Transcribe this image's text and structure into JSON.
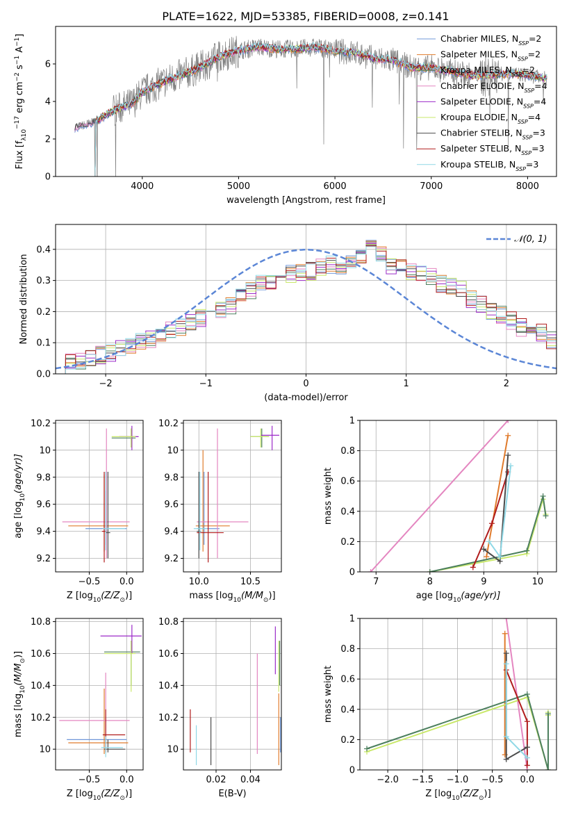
{
  "figure": {
    "title": "PLATE=1622, MJD=53385, FIBERID=0008, z=0.141"
  },
  "series": [
    {
      "name": "Chabrier MILES, N",
      "sub": "SSP",
      "tail": "=2",
      "color": "#6f97d9"
    },
    {
      "name": "Salpeter MILES, N",
      "sub": "SSP",
      "tail": "=2",
      "color": "#e07b2c"
    },
    {
      "name": "Kroupa MILES, N",
      "sub": "SSP",
      "tail": "=2",
      "color": "#4c7f5e"
    },
    {
      "name": "Chabrier ELODIE, N",
      "sub": "SSP",
      "tail": "=4",
      "color": "#e486c0"
    },
    {
      "name": "Salpeter ELODIE, N",
      "sub": "SSP",
      "tail": "=4",
      "color": "#9b2ac8"
    },
    {
      "name": "Kroupa ELODIE, N",
      "sub": "SSP",
      "tail": "=4",
      "color": "#c9e86a"
    },
    {
      "name": "Chabrier STELIB, N",
      "sub": "SSP",
      "tail": "=3",
      "color": "#4a4a4a"
    },
    {
      "name": "Salpeter STELIB, N",
      "sub": "SSP",
      "tail": "=3",
      "color": "#b01c1c"
    },
    {
      "name": "Kroupa STELIB, N",
      "sub": "SSP",
      "tail": "=3",
      "color": "#8fd8e6"
    }
  ],
  "data_color": "#7f7f7f",
  "chart_data": [
    {
      "id": "spectrum",
      "type": "line",
      "xlabel": "wavelength [Angstrom, rest frame]",
      "ylabel": "Flux [f",
      "ylabel_parts": [
        "λ",
        "10",
        "−17",
        " erg cm",
        "−2",
        " s",
        "−1",
        " A",
        "−1",
        "]"
      ],
      "xlim": [
        3100,
        8300
      ],
      "ylim": [
        0,
        8
      ],
      "xticks": [
        4000,
        5000,
        6000,
        7000,
        8000
      ],
      "yticks": [
        0,
        2,
        4,
        6
      ],
      "grid": false,
      "legend": "right",
      "continuum": [
        [
          3300,
          2.6
        ],
        [
          3500,
          2.9
        ],
        [
          3700,
          3.5
        ],
        [
          3900,
          3.9
        ],
        [
          4000,
          4.5
        ],
        [
          4200,
          5.0
        ],
        [
          4400,
          5.4
        ],
        [
          4600,
          5.8
        ],
        [
          4800,
          6.4
        ],
        [
          5000,
          6.7
        ],
        [
          5200,
          6.9
        ],
        [
          5400,
          6.8
        ],
        [
          5600,
          6.8
        ],
        [
          5800,
          6.9
        ],
        [
          6000,
          6.7
        ],
        [
          6200,
          6.6
        ],
        [
          6400,
          6.3
        ],
        [
          6600,
          6.2
        ],
        [
          6800,
          5.8
        ],
        [
          7000,
          5.8
        ],
        [
          7200,
          5.6
        ],
        [
          7400,
          5.4
        ],
        [
          7600,
          5.4
        ],
        [
          7800,
          5.5
        ],
        [
          8000,
          5.4
        ],
        [
          8200,
          5.2
        ]
      ]
    },
    {
      "id": "residuals",
      "type": "histogram",
      "xlabel": "(data-model)/error",
      "ylabel": "Normed distribution",
      "xlim": [
        -2.5,
        2.5
      ],
      "ylim": [
        0,
        0.48
      ],
      "xticks": [
        -2,
        -1,
        0,
        1,
        2
      ],
      "yticks": [
        0.0,
        0.1,
        0.2,
        0.3,
        0.4
      ],
      "grid": true,
      "legend": "top-right",
      "gaussian_label": "𝒩(0, 1)",
      "gaussian_color": "#5b86d6",
      "bin_width": 0.1,
      "base": [
        0.03,
        0.035,
        0.045,
        0.05,
        0.06,
        0.07,
        0.08,
        0.09,
        0.1,
        0.11,
        0.12,
        0.14,
        0.15,
        0.17,
        0.18,
        0.2,
        0.21,
        0.22,
        0.25,
        0.27,
        0.29,
        0.3,
        0.31,
        0.32,
        0.33,
        0.33,
        0.34,
        0.35,
        0.35,
        0.36,
        0.37,
        0.4,
        0.38,
        0.35,
        0.34,
        0.33,
        0.32,
        0.31,
        0.29,
        0.28,
        0.27,
        0.24,
        0.22,
        0.2,
        0.19,
        0.17,
        0.15,
        0.14,
        0.13,
        0.11
      ]
    },
    {
      "id": "age-vs-Z",
      "type": "errorbar",
      "xlabel": "Z [log",
      "xlabel_parts": [
        "10",
        "(Z/Z",
        "⊙",
        ")]"
      ],
      "ylabel": "age  [log",
      "ylabel_parts": [
        "10",
        "(age/yr)]"
      ],
      "xlim": [
        -0.95,
        0.22
      ],
      "ylim": [
        9.1,
        10.22
      ],
      "xticks": [
        -0.5,
        0.0
      ],
      "xtick_labels": [
        "−0.5",
        "0.0"
      ],
      "yticks": [
        9.2,
        9.4,
        9.6,
        9.8,
        10.0,
        10.2
      ],
      "grid": true,
      "points": [
        {
          "s": 0,
          "x": -0.28,
          "xe": [
            -0.55,
            0.0
          ],
          "y": 9.42,
          "ye": [
            9.3,
            9.7
          ]
        },
        {
          "s": 1,
          "x": -0.3,
          "xe": [
            -0.78,
            0.02
          ],
          "y": 9.44,
          "ye": [
            9.25,
            9.82
          ]
        },
        {
          "s": 2,
          "x": 0.06,
          "xe": [
            -0.2,
            0.12
          ],
          "y": 10.09,
          "ye": [
            10.02,
            10.16
          ]
        },
        {
          "s": 3,
          "x": -0.27,
          "xe": [
            -0.86,
            0.04
          ],
          "y": 9.47,
          "ye": [
            9.2,
            10.16
          ]
        },
        {
          "s": 4,
          "x": 0.07,
          "xe": [
            -0.1,
            0.16
          ],
          "y": 10.1,
          "ye": [
            10.0,
            10.18
          ]
        },
        {
          "s": 5,
          "x": 0.06,
          "xe": [
            -0.2,
            0.12
          ],
          "y": 10.1,
          "ye": [
            10.02,
            10.16
          ]
        },
        {
          "s": 6,
          "x": -0.25,
          "xe": [
            -0.28,
            -0.22
          ],
          "y": 9.39,
          "ye": [
            9.2,
            9.84
          ]
        },
        {
          "s": 7,
          "x": -0.3,
          "xe": [
            -0.33,
            -0.27
          ],
          "y": 9.4,
          "ye": [
            9.17,
            9.84
          ]
        },
        {
          "s": 8,
          "x": -0.28,
          "xe": [
            -0.32,
            -0.02
          ],
          "y": 9.42,
          "ye": [
            9.26,
            9.84
          ]
        }
      ]
    },
    {
      "id": "age-vs-mass",
      "type": "errorbar",
      "xlabel": "mass [log",
      "xlabel_parts": [
        "10",
        "(M/M",
        "⊙",
        ")]"
      ],
      "ylabel": "",
      "xlim": [
        9.85,
        10.8
      ],
      "ylim": [
        9.1,
        10.22
      ],
      "xticks": [
        10.0,
        10.5
      ],
      "xtick_labels": [
        "10.0",
        "10.5"
      ],
      "yticks": [
        9.2,
        9.4,
        9.6,
        9.8,
        10.0,
        10.2
      ],
      "grid": true,
      "points": [
        {
          "s": 0,
          "x": 10.05,
          "xe": [
            9.98,
            10.2
          ],
          "y": 9.42,
          "ye": [
            9.3,
            9.84
          ]
        },
        {
          "s": 1,
          "x": 10.04,
          "xe": [
            9.97,
            10.3
          ],
          "y": 9.44,
          "ye": [
            9.25,
            10.0
          ]
        },
        {
          "s": 2,
          "x": 10.61,
          "xe": [
            10.5,
            10.68
          ],
          "y": 10.1,
          "ye": [
            10.02,
            10.16
          ]
        },
        {
          "s": 3,
          "x": 10.18,
          "xe": [
            9.98,
            10.48
          ],
          "y": 9.47,
          "ye": [
            9.2,
            10.16
          ]
        },
        {
          "s": 4,
          "x": 10.71,
          "xe": [
            10.6,
            10.78
          ],
          "y": 10.11,
          "ye": [
            10.0,
            10.18
          ]
        },
        {
          "s": 5,
          "x": 10.6,
          "xe": [
            10.5,
            10.68
          ],
          "y": 10.1,
          "ye": [
            10.02,
            10.16
          ]
        },
        {
          "s": 6,
          "x": 10.0,
          "xe": [
            9.98,
            10.02
          ],
          "y": 9.4,
          "ye": [
            9.2,
            9.84
          ]
        },
        {
          "s": 7,
          "x": 10.09,
          "xe": [
            9.98,
            10.24
          ],
          "y": 9.39,
          "ye": [
            9.17,
            9.84
          ]
        },
        {
          "s": 8,
          "x": 10.01,
          "xe": [
            9.95,
            10.08
          ],
          "y": 9.42,
          "ye": [
            9.26,
            9.84
          ]
        }
      ]
    },
    {
      "id": "weight-vs-age",
      "type": "line",
      "xlabel": "age  [log",
      "xlabel_parts": [
        "10",
        "(age/yr)]"
      ],
      "ylabel": "mass weight",
      "xlim": [
        6.7,
        10.35
      ],
      "ylim": [
        0.0,
        1.0
      ],
      "xticks": [
        7,
        8,
        9,
        10
      ],
      "xtick_labels": [
        "7",
        "8",
        "9",
        "10"
      ],
      "yticks": [
        0.0,
        0.2,
        0.4,
        0.6,
        0.8,
        1.0
      ],
      "grid": true,
      "lines": [
        {
          "s": 3,
          "x": [
            6.9,
            9.45
          ],
          "y": [
            0.0,
            1.0
          ]
        },
        {
          "s": 1,
          "x": [
            9.05,
            9.45
          ],
          "y": [
            0.1,
            0.9
          ]
        },
        {
          "s": 5,
          "x": [
            8.0,
            9.8,
            10.1,
            10.15
          ],
          "y": [
            0.0,
            0.12,
            0.48,
            0.38
          ]
        },
        {
          "s": 2,
          "x": [
            8.0,
            9.8,
            10.1,
            10.15
          ],
          "y": [
            0.0,
            0.14,
            0.5,
            0.37
          ]
        },
        {
          "s": 7,
          "x": [
            8.8,
            9.15,
            9.45
          ],
          "y": [
            0.03,
            0.32,
            0.66
          ]
        },
        {
          "s": 6,
          "x": [
            9.0,
            9.3,
            9.45
          ],
          "y": [
            0.15,
            0.07,
            0.77
          ]
        },
        {
          "s": 8,
          "x": [
            9.1,
            9.3,
            9.5
          ],
          "y": [
            0.2,
            0.1,
            0.7
          ]
        }
      ]
    },
    {
      "id": "mass-vs-Z",
      "type": "errorbar",
      "xlabel": "Z [log",
      "xlabel_parts": [
        "10",
        "(Z/Z",
        "⊙",
        ")]"
      ],
      "ylabel": "mass [log",
      "ylabel_parts": [
        "10",
        "(M/M",
        "⊙",
        ")]"
      ],
      "xlim": [
        -0.95,
        0.22
      ],
      "ylim": [
        9.87,
        10.82
      ],
      "xticks": [
        -0.5,
        0.0
      ],
      "xtick_labels": [
        "−0.5",
        "0.0"
      ],
      "yticks": [
        10.0,
        10.2,
        10.4,
        10.6,
        10.8
      ],
      "grid": true,
      "points": [
        {
          "s": 0,
          "x": -0.28,
          "xe": [
            -0.8,
            0.0
          ],
          "y": 10.06,
          "ye": [
            9.98,
            10.2
          ]
        },
        {
          "s": 1,
          "x": -0.3,
          "xe": [
            -0.78,
            0.02
          ],
          "y": 10.04,
          "ye": [
            9.97,
            10.38
          ]
        },
        {
          "s": 2,
          "x": 0.06,
          "xe": [
            -0.3,
            0.18
          ],
          "y": 10.61,
          "ye": [
            10.4,
            10.68
          ]
        },
        {
          "s": 3,
          "x": -0.28,
          "xe": [
            -0.9,
            0.04
          ],
          "y": 10.18,
          "ye": [
            9.98,
            10.48
          ]
        },
        {
          "s": 4,
          "x": 0.07,
          "xe": [
            -0.35,
            0.2
          ],
          "y": 10.71,
          "ye": [
            10.6,
            10.78
          ]
        },
        {
          "s": 5,
          "x": 0.06,
          "xe": [
            -0.3,
            0.12
          ],
          "y": 10.6,
          "ye": [
            10.36,
            10.68
          ]
        },
        {
          "s": 6,
          "x": -0.25,
          "xe": [
            -0.3,
            -0.02
          ],
          "y": 10.0,
          "ye": [
            9.98,
            10.06
          ]
        },
        {
          "s": 7,
          "x": -0.28,
          "xe": [
            -0.32,
            -0.02
          ],
          "y": 10.09,
          "ye": [
            9.98,
            10.25
          ]
        },
        {
          "s": 8,
          "x": -0.28,
          "xe": [
            -0.34,
            -0.05
          ],
          "y": 10.01,
          "ye": [
            9.95,
            10.08
          ]
        }
      ]
    },
    {
      "id": "mass-vs-EBV",
      "type": "errorbar",
      "xlabel": "E(B-V)",
      "ylabel": "",
      "xlim": [
        0.001,
        0.058
      ],
      "ylim": [
        9.87,
        10.82
      ],
      "xticks": [
        0.02,
        0.04
      ],
      "xtick_labels": [
        "0.02",
        "0.04"
      ],
      "yticks": [
        10.0,
        10.2,
        10.4,
        10.6,
        10.8
      ],
      "grid": true,
      "points": [
        {
          "s": 0,
          "x": 0.0575,
          "xe": null,
          "y": 10.06,
          "ye": [
            9.98,
            10.2
          ]
        },
        {
          "s": 1,
          "x": 0.0565,
          "xe": null,
          "y": 10.04,
          "ye": [
            9.9,
            10.35
          ]
        },
        {
          "s": 2,
          "x": 0.057,
          "xe": null,
          "y": 10.61,
          "ye": [
            10.4,
            10.68
          ]
        },
        {
          "s": 3,
          "x": 0.044,
          "xe": null,
          "y": 10.18,
          "ye": [
            9.97,
            10.6
          ]
        },
        {
          "s": 4,
          "x": 0.0545,
          "xe": null,
          "y": 10.65,
          "ye": [
            10.47,
            10.77
          ]
        },
        {
          "s": 5,
          "x": 0.0565,
          "xe": null,
          "y": 10.6,
          "ye": [
            10.36,
            10.68
          ]
        },
        {
          "s": 6,
          "x": 0.017,
          "xe": null,
          "y": 10.1,
          "ye": [
            9.9,
            10.2
          ]
        },
        {
          "s": 7,
          "x": 0.005,
          "xe": null,
          "y": 10.09,
          "ye": [
            9.98,
            10.25
          ]
        },
        {
          "s": 8,
          "x": 0.0085,
          "xe": null,
          "y": 10.0,
          "ye": [
            9.9,
            10.15
          ]
        }
      ]
    },
    {
      "id": "weight-vs-Z",
      "type": "line",
      "xlabel": "Z [log",
      "xlabel_parts": [
        "10",
        "(Z/Z",
        "⊙",
        ")]"
      ],
      "ylabel": "mass weight",
      "xlim": [
        -2.4,
        0.42
      ],
      "ylim": [
        0.0,
        1.0
      ],
      "xticks": [
        -2.0,
        -1.5,
        -1.0,
        -0.5,
        0.0
      ],
      "xtick_labels": [
        "−2.0",
        "−1.5",
        "−1.0",
        "−0.5",
        "0.0"
      ],
      "yticks": [
        0.0,
        0.2,
        0.4,
        0.6,
        0.8,
        1.0
      ],
      "grid": true,
      "lines": [
        {
          "s": 3,
          "x": [
            -0.3,
            0.0
          ],
          "y": [
            1.0,
            0.0
          ]
        },
        {
          "s": 1,
          "x": [
            -0.32,
            -0.32
          ],
          "y": [
            0.9,
            0.1
          ]
        },
        {
          "s": 5,
          "x": [
            -2.3,
            0.0,
            0.3,
            0.3,
            0.3
          ],
          "y": [
            0.12,
            0.48,
            0.0,
            0.38,
            0.36
          ]
        },
        {
          "s": 2,
          "x": [
            -2.3,
            0.0,
            0.3,
            0.3
          ],
          "y": [
            0.14,
            0.5,
            0.0,
            0.37
          ]
        },
        {
          "s": 7,
          "x": [
            -0.3,
            0.0,
            0.0
          ],
          "y": [
            0.66,
            0.32,
            0.03
          ]
        },
        {
          "s": 6,
          "x": [
            -0.3,
            -0.3,
            0.0
          ],
          "y": [
            0.77,
            0.07,
            0.15
          ]
        },
        {
          "s": 8,
          "x": [
            -0.3,
            -0.3,
            0.0
          ],
          "y": [
            0.7,
            0.22,
            0.08
          ]
        }
      ]
    }
  ]
}
